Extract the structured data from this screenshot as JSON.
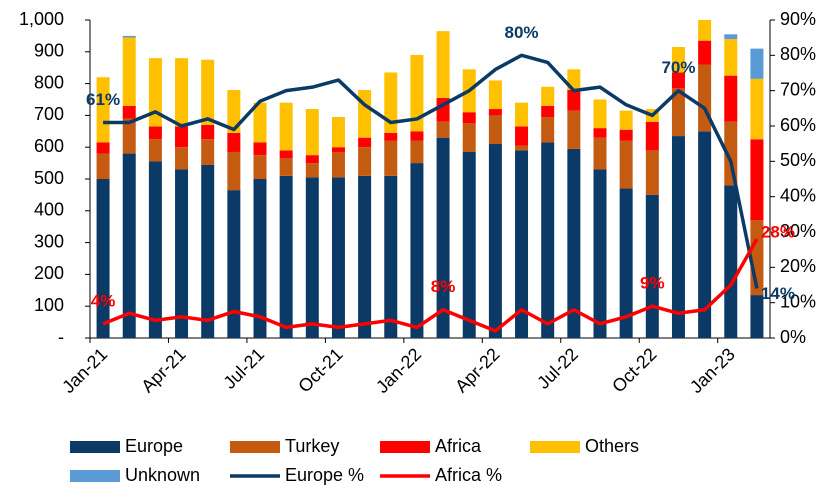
{
  "chart_data": {
    "type": "bar",
    "stacked": true,
    "categories": [
      "Jan-21",
      null,
      null,
      "Apr-21",
      null,
      null,
      "Jul-21",
      null,
      null,
      "Oct-21",
      null,
      null,
      "Jan-22",
      null,
      null,
      "Apr-22",
      null,
      null,
      "Jul-22",
      null,
      null,
      "Oct-22",
      null,
      null,
      "Jan-23",
      null
    ],
    "series": [
      {
        "name": "Europe",
        "color": "#0c3a66",
        "values": [
          500,
          580,
          555,
          530,
          545,
          465,
          500,
          510,
          505,
          505,
          510,
          510,
          550,
          630,
          585,
          610,
          590,
          615,
          595,
          530,
          470,
          450,
          635,
          650,
          480,
          135
        ]
      },
      {
        "name": "Turkey",
        "color": "#c55a11",
        "values": [
          80,
          110,
          70,
          70,
          80,
          120,
          75,
          55,
          45,
          80,
          90,
          110,
          70,
          50,
          90,
          90,
          15,
          80,
          120,
          100,
          150,
          140,
          150,
          210,
          200,
          235
        ]
      },
      {
        "name": "Africa",
        "color": "#ff0000",
        "values": [
          35,
          40,
          40,
          65,
          45,
          60,
          40,
          25,
          25,
          15,
          30,
          25,
          30,
          75,
          35,
          20,
          60,
          35,
          65,
          30,
          35,
          90,
          50,
          75,
          145,
          255
        ]
      },
      {
        "name": "Others",
        "color": "#ffc000",
        "values": [
          205,
          215,
          215,
          215,
          205,
          135,
          125,
          150,
          145,
          95,
          150,
          190,
          240,
          210,
          135,
          90,
          75,
          60,
          65,
          90,
          60,
          40,
          80,
          65,
          115,
          190
        ]
      },
      {
        "name": "Unknown",
        "color": "#5b9bd5",
        "values": [
          0,
          5,
          0,
          0,
          0,
          0,
          0,
          0,
          0,
          0,
          0,
          0,
          0,
          0,
          0,
          0,
          0,
          0,
          0,
          0,
          0,
          0,
          0,
          0,
          15,
          95
        ]
      },
      {
        "name": "Europe %",
        "type": "line",
        "axis": "y2",
        "color": "#0c3a66",
        "values": [
          61,
          61,
          64,
          60,
          62,
          59,
          67,
          70,
          71,
          73,
          66,
          61,
          62,
          66,
          70,
          76,
          80,
          78,
          70,
          71,
          66,
          63,
          70,
          65,
          50,
          14
        ],
        "value_labels": [
          "61%",
          null,
          null,
          null,
          null,
          null,
          null,
          null,
          null,
          null,
          null,
          null,
          null,
          null,
          null,
          null,
          "80%",
          null,
          null,
          null,
          null,
          null,
          "70%",
          null,
          null,
          "14%"
        ]
      },
      {
        "name": "Africa %",
        "type": "line",
        "axis": "y2",
        "color": "#ff0000",
        "values": [
          4,
          7,
          5,
          6,
          5,
          7.5,
          6,
          3,
          4,
          3,
          4,
          5,
          3,
          8,
          5,
          2,
          8,
          4,
          8,
          4,
          6,
          9,
          7,
          8,
          15,
          28
        ],
        "value_labels": [
          "4%",
          null,
          null,
          null,
          null,
          null,
          null,
          null,
          null,
          null,
          null,
          null,
          null,
          "8%",
          null,
          null,
          null,
          null,
          null,
          null,
          null,
          "9%",
          null,
          null,
          null,
          "28%"
        ]
      }
    ],
    "ylim": [
      0,
      1000
    ],
    "yticks": [
      {
        "value": 0,
        "label": "-"
      },
      100,
      200,
      300,
      400,
      500,
      600,
      700,
      800,
      900,
      {
        "value": 1000,
        "label": "1,000"
      }
    ],
    "y2lim": [
      0,
      90
    ],
    "y2ticks": [
      {
        "value": 0,
        "label": "0%"
      },
      {
        "value": 10,
        "label": "10%"
      },
      {
        "value": 20,
        "label": "20%"
      },
      {
        "value": 30,
        "label": "30%"
      },
      {
        "value": 40,
        "label": "40%"
      },
      {
        "value": 50,
        "label": "50%"
      },
      {
        "value": 60,
        "label": "60%"
      },
      {
        "value": 70,
        "label": "70%"
      },
      {
        "value": 80,
        "label": "80%"
      },
      {
        "value": 90,
        "label": "90%"
      }
    ],
    "legend": "bottom"
  }
}
